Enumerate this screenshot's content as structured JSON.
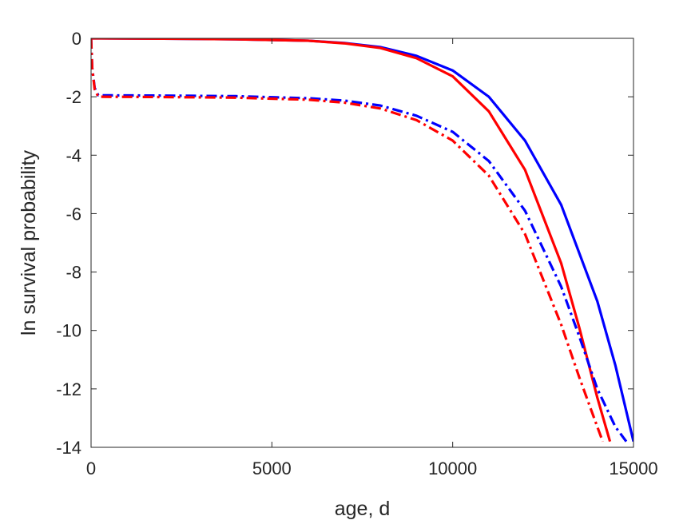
{
  "chart_data": {
    "type": "line",
    "title": "",
    "xlabel": "age, d",
    "ylabel": "ln survival probability",
    "xlim": [
      0,
      15000
    ],
    "ylim": [
      -14,
      0
    ],
    "xticks": [
      0,
      5000,
      10000,
      15000
    ],
    "yticks": [
      0,
      -2,
      -4,
      -6,
      -8,
      -10,
      -12,
      -14
    ],
    "grid": false,
    "legend": "none",
    "series": [
      {
        "color": "#0000ff",
        "style": "solid",
        "x": [
          0,
          2000,
          4000,
          6000,
          7000,
          8000,
          9000,
          10000,
          11000,
          12000,
          13000,
          14000,
          14500,
          15000
        ],
        "y": [
          0,
          -0.01,
          -0.03,
          -0.08,
          -0.16,
          -0.3,
          -0.6,
          -1.1,
          -2.0,
          -3.5,
          -5.7,
          -9.0,
          -11.2,
          -13.8
        ]
      },
      {
        "color": "#ff0000",
        "style": "solid",
        "x": [
          0,
          2000,
          4000,
          6000,
          7000,
          8000,
          9000,
          10000,
          11000,
          12000,
          13000,
          13500,
          14000,
          14350
        ],
        "y": [
          0,
          -0.01,
          -0.03,
          -0.08,
          -0.17,
          -0.33,
          -0.68,
          -1.3,
          -2.5,
          -4.5,
          -7.7,
          -9.9,
          -12.3,
          -13.8
        ]
      },
      {
        "color": "#0000ff",
        "style": "dashdot",
        "x": [
          0,
          30,
          100,
          200,
          2000,
          4000,
          6000,
          7000,
          8000,
          9000,
          10000,
          11000,
          12000,
          13000,
          13500,
          14000,
          14500,
          14800
        ],
        "y": [
          0,
          -1.0,
          -1.7,
          -1.95,
          -1.96,
          -1.98,
          -2.05,
          -2.13,
          -2.3,
          -2.65,
          -3.2,
          -4.2,
          -5.9,
          -8.5,
          -10.2,
          -12.0,
          -13.3,
          -13.8
        ]
      },
      {
        "color": "#ff0000",
        "style": "dashdot",
        "x": [
          0,
          30,
          100,
          200,
          2000,
          4000,
          6000,
          7000,
          8000,
          9000,
          10000,
          11000,
          12000,
          13000,
          13500,
          14000,
          14150
        ],
        "y": [
          0,
          -1.0,
          -1.75,
          -2.0,
          -2.01,
          -2.03,
          -2.1,
          -2.2,
          -2.4,
          -2.8,
          -3.5,
          -4.7,
          -6.7,
          -9.8,
          -11.6,
          -13.3,
          -13.8
        ]
      }
    ]
  }
}
